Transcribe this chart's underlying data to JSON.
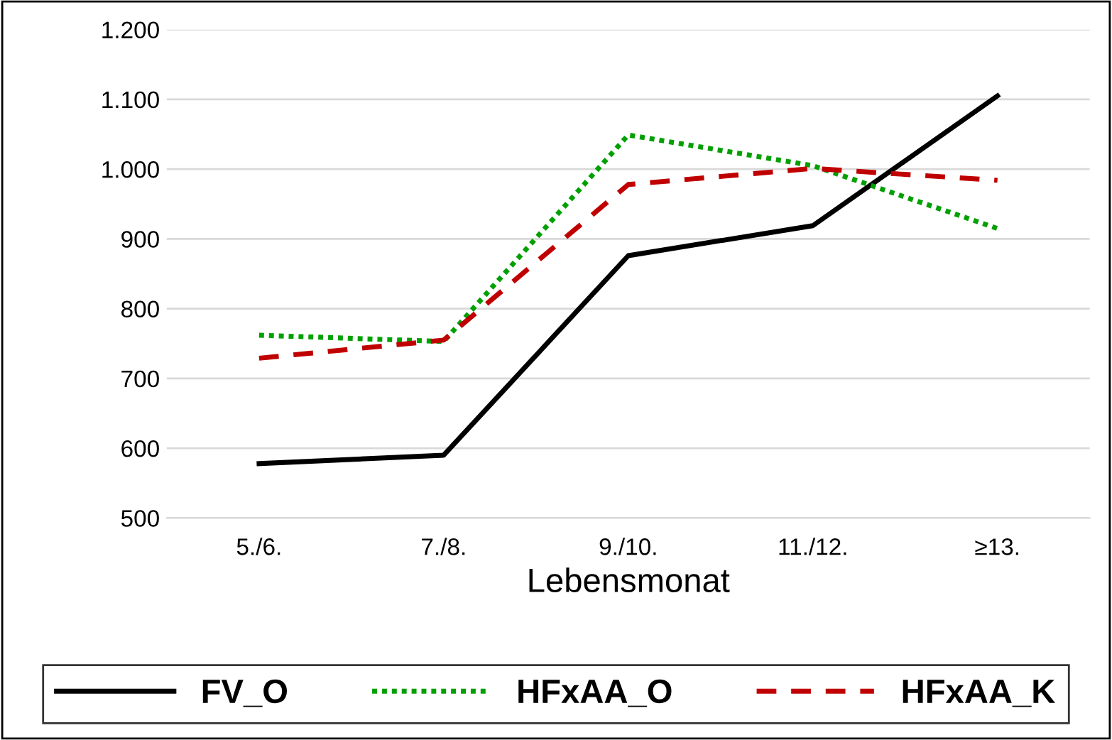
{
  "chart_data": {
    "type": "line",
    "xlabel": "Lebensmonat",
    "categories": [
      "5./6.",
      "7./8.",
      "9./10.",
      "11./12.",
      "≥13."
    ],
    "series": [
      {
        "name": "FV_O",
        "color": "#000000",
        "line_style": "solid",
        "values": [
          578,
          590,
          876,
          919,
          1105
        ]
      },
      {
        "name": "HFxAA_O",
        "color": "#00a000",
        "line_style": "dotted",
        "values": [
          762,
          753,
          1049,
          1005,
          915
        ]
      },
      {
        "name": "HFxAA_K",
        "color": "#c00000",
        "line_style": "dashed",
        "values": [
          729,
          755,
          978,
          1001,
          984
        ]
      }
    ],
    "ylim": [
      500,
      1200
    ],
    "yticks": [
      {
        "value": 500,
        "label": "500"
      },
      {
        "value": 600,
        "label": "600"
      },
      {
        "value": 700,
        "label": "700"
      },
      {
        "value": 800,
        "label": "800"
      },
      {
        "value": 900,
        "label": "900"
      },
      {
        "value": 1000,
        "label": "1.000"
      },
      {
        "value": 1100,
        "label": "1.100"
      },
      {
        "value": 1200,
        "label": "1.200"
      }
    ],
    "grid": "y",
    "legend": "bottom",
    "marker": "none"
  }
}
